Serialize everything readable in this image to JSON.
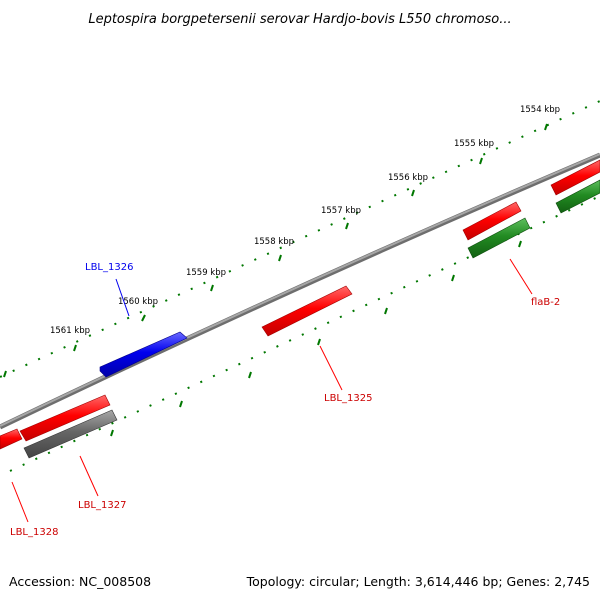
{
  "title": "Leptospira borgpetersenii serovar Hardjo-bovis L550 chromoso...",
  "footer": {
    "accession": "Accession: NC_008508",
    "summary": "Topology: circular; Length: 3,614,446 bp; Genes: 2,745"
  },
  "ticks": [
    "1554 kbp",
    "1555 kbp",
    "1556 kbp",
    "1557 kbp",
    "1558 kbp",
    "1559 kbp",
    "1560 kbp",
    "1561 kbp"
  ],
  "genes": [
    {
      "name": "LBL_1326",
      "color": "#0000ee"
    },
    {
      "name": "LBL_1325",
      "color": "#ff0000"
    },
    {
      "name": "flaB-2",
      "color": "#ff0000"
    },
    {
      "name": "LBL_1327",
      "color": "#ff0000"
    },
    {
      "name": "LBL_1328",
      "color": "#ff0000"
    }
  ],
  "colors": {
    "backbone": "#888888",
    "tick": "#007700",
    "forward": "#ff0000",
    "reverse_green": "#228B22",
    "blue": "#0000ee",
    "grey": "#666666"
  }
}
